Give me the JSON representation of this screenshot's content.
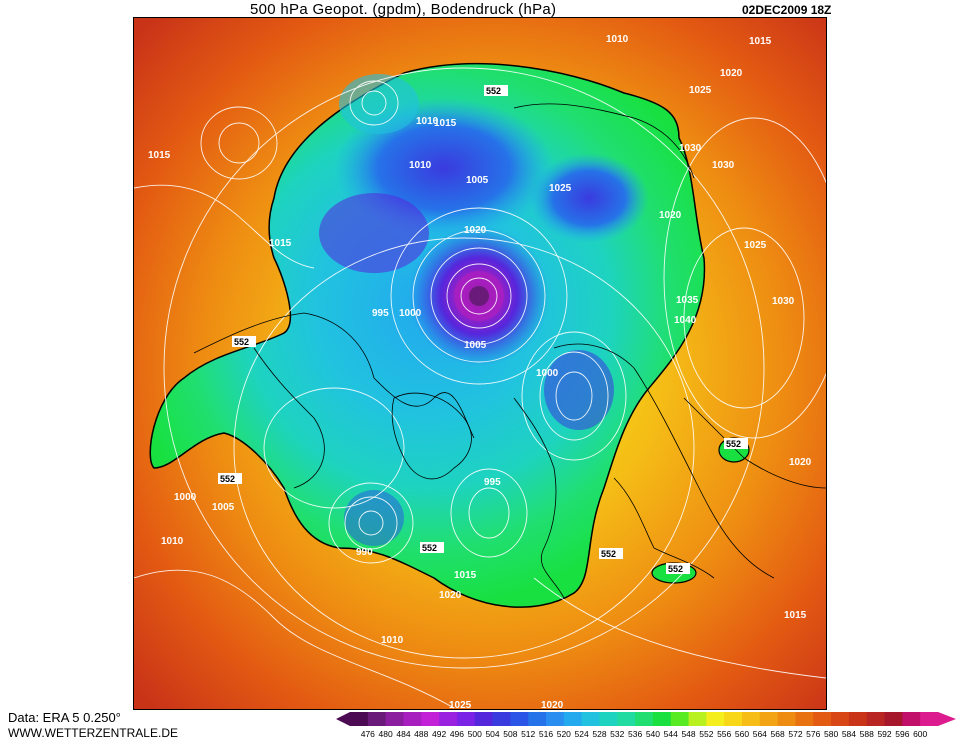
{
  "header": {
    "title": "500 hPa Geopot. (gpdm), Bodendruck (hPa)",
    "stamp": "02DEC2009 18Z"
  },
  "footer": {
    "source": "Data: ERA 5 0.250°",
    "site": "WWW.WETTERZENTRALE.DE"
  },
  "colorbar": {
    "labels": [
      "476",
      "480",
      "484",
      "488",
      "492",
      "496",
      "500",
      "504",
      "508",
      "512",
      "516",
      "520",
      "524",
      "528",
      "532",
      "536",
      "540",
      "544",
      "548",
      "552",
      "556",
      "560",
      "564",
      "568",
      "572",
      "576",
      "580",
      "584",
      "588",
      "592",
      "596",
      "600"
    ],
    "colors": [
      "#4b0a52",
      "#6a1b7a",
      "#8a1e9e",
      "#a81fc0",
      "#c221d8",
      "#9b21e0",
      "#7a22e6",
      "#5527dc",
      "#3a3bdf",
      "#2a55e6",
      "#2672e8",
      "#2a8ef0",
      "#22a9ee",
      "#21c2e0",
      "#1ed3c0",
      "#22dba0",
      "#20df70",
      "#18e040",
      "#58ea22",
      "#b8f020",
      "#f4ee1c",
      "#f8d618",
      "#f5bd16",
      "#f2a414",
      "#ee8c12",
      "#e87110",
      "#e35a12",
      "#d84615",
      "#c93418",
      "#b82522",
      "#a6172c",
      "#c0106a",
      "#dc1b8f"
    ]
  },
  "map": {
    "contour_552_label": "552",
    "pressure_labels": [
      "1015",
      "1010",
      "1015",
      "1020",
      "1025",
      "1030",
      "1035",
      "1040",
      "1005",
      "1000",
      "995",
      "990",
      "1005",
      "1000",
      "995",
      "1010",
      "1015",
      "1020",
      "1025",
      "1030",
      "1010",
      "1015",
      "1020",
      "1025",
      "1030",
      "1020",
      "1010",
      "1015",
      "1000",
      "1005",
      "1010",
      "1020",
      "1015",
      "1025",
      "1020"
    ]
  }
}
